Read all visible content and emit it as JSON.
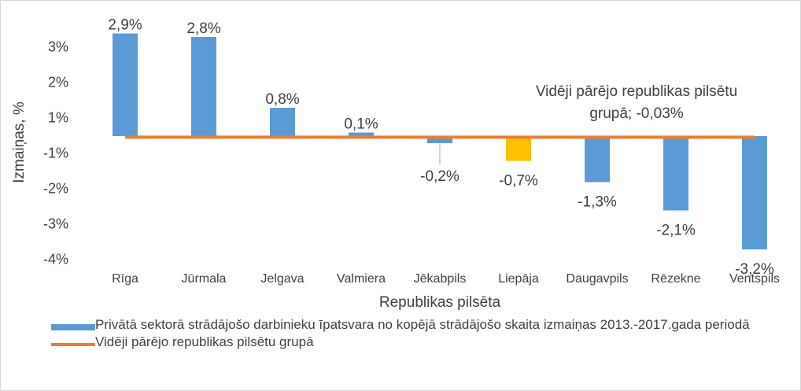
{
  "chart_data": {
    "type": "bar",
    "categories": [
      "Rīga",
      "Jūrmala",
      "Jelgava",
      "Valmiera",
      "Jēkabpils",
      "Liepāja",
      "Daugavpils",
      "Rēzekne",
      "Ventspils"
    ],
    "series": [
      {
        "name": "Privātā sektorā strādājošo darbinieku īpatsvara no kopējā strādājošo skaita izmaiņas 2013.-2017.gada periodā",
        "color": "#5b9bd5",
        "colors": [
          "#5b9bd5",
          "#5b9bd5",
          "#5b9bd5",
          "#5b9bd5",
          "#5b9bd5",
          "#ffc000",
          "#5b9bd5",
          "#5b9bd5",
          "#5b9bd5"
        ],
        "values": [
          2.9,
          2.8,
          0.8,
          0.1,
          -0.2,
          -0.7,
          -1.3,
          -2.1,
          -3.2
        ],
        "value_labels": [
          "2,9%",
          "2,8%",
          "0,8%",
          "0,1%",
          "-0,2%",
          "-0,7%",
          "-1,3%",
          "-2,1%",
          "-3,2%"
        ]
      }
    ],
    "average": {
      "name": "Vidēji pārējo republikas pilsētu grupā",
      "color": "#ed7d31",
      "value": -0.03,
      "label_lines": [
        "Vidēji pārējo republikas pilsētu",
        "grupā; -0,03%"
      ]
    },
    "xlabel": "Republikas pilsēta",
    "ylabel": "Izmaiņas, %",
    "ylim": [
      -3.7,
      3.5
    ],
    "yticks": [
      {
        "value": 2.5,
        "label": "3%"
      },
      {
        "value": 1.5,
        "label": "2%"
      },
      {
        "value": 0.5,
        "label": "1%"
      },
      {
        "value": -0.5,
        "label": "-1%"
      },
      {
        "value": -1.5,
        "label": "-2%"
      },
      {
        "value": -2.5,
        "label": "-3%"
      },
      {
        "value": -3.5,
        "label": "-4%"
      }
    ],
    "legend": "bottom"
  }
}
